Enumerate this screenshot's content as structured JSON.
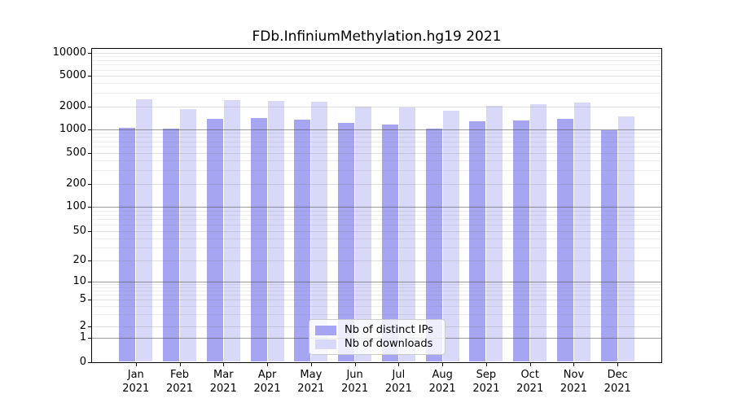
{
  "title": "FDb.InfiniumMethylation.hg19 2021",
  "chart_data": {
    "type": "bar",
    "title": "FDb.InfiniumMethylation.hg19 2021",
    "categories": [
      "Jan",
      "Feb",
      "Mar",
      "Apr",
      "May",
      "Jun",
      "Jul",
      "Aug",
      "Sep",
      "Oct",
      "Nov",
      "Dec"
    ],
    "year": "2021",
    "series": [
      {
        "name": "Nb of distinct IPs",
        "color": "#a5a5f2",
        "values": [
          1030,
          1010,
          1350,
          1410,
          1340,
          1210,
          1150,
          1020,
          1270,
          1300,
          1350,
          970
        ]
      },
      {
        "name": "Nb of downloads",
        "color": "#d8d8f8",
        "values": [
          2490,
          1850,
          2390,
          2370,
          2290,
          1960,
          1950,
          1730,
          2030,
          2150,
          2230,
          1480
        ]
      }
    ],
    "xlabel": "",
    "ylabel": "",
    "yscale": "symlog",
    "ylim": [
      0,
      10000
    ],
    "yticks": [
      0,
      1,
      2,
      5,
      10,
      20,
      50,
      100,
      200,
      500,
      1000,
      2000,
      5000,
      10000
    ],
    "grid": "both",
    "legend_position": "lower center"
  }
}
